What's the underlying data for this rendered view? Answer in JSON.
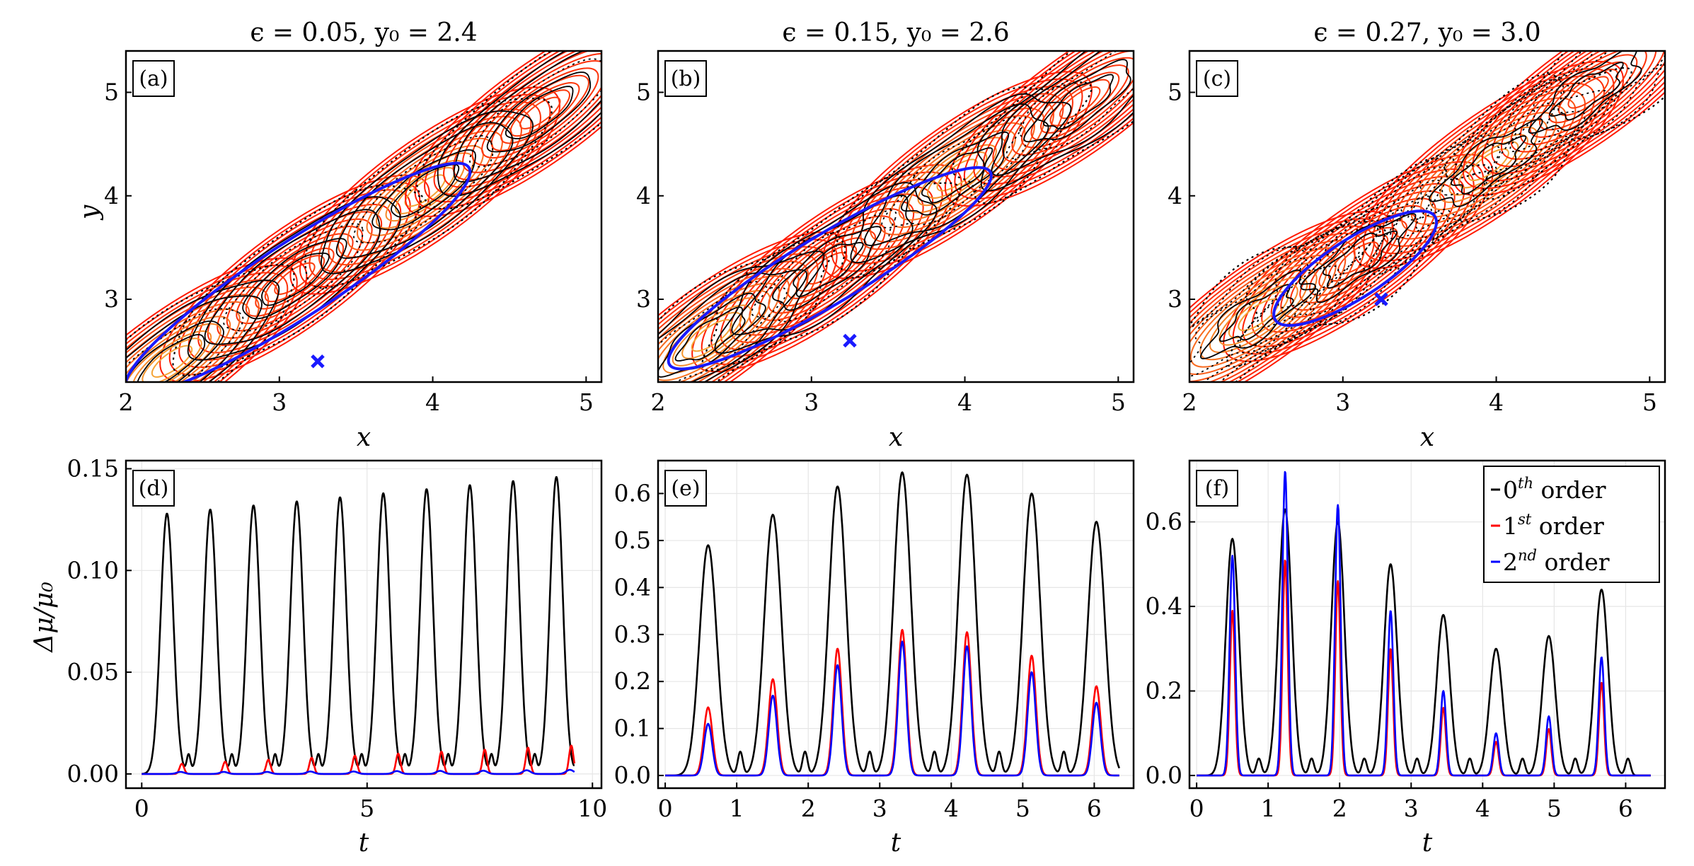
{
  "chart_data": [
    {
      "type": "contour",
      "panel": "(a)",
      "title": "ϵ = 0.05, y₀ = 2.4",
      "xlabel": "x",
      "ylabel": "y",
      "xlim": [
        2,
        5.1
      ],
      "ylim": [
        2.2,
        5.4
      ],
      "xticks": [
        "2",
        "3",
        "4",
        "5"
      ],
      "yticks": [
        "3",
        "4",
        "5"
      ],
      "epsilon": 0.05,
      "start": {
        "x": 3.25,
        "y": 2.4
      },
      "orbit": {
        "cx": 3.12,
        "cy": 3.2,
        "a": 1.33,
        "b": 0.36,
        "angle_deg": -33
      },
      "islands": [
        {
          "cx": 3.1,
          "cy": 3.2,
          "sign": 1
        },
        {
          "cx": 3.95,
          "cy": 4.05,
          "sign": -1
        },
        {
          "cx": 4.7,
          "cy": 4.8,
          "sign": 1
        },
        {
          "cx": 2.3,
          "cy": 2.4,
          "sign": -1
        }
      ]
    },
    {
      "type": "contour",
      "panel": "(b)",
      "title": "ϵ = 0.15, y₀ = 2.6",
      "xlabel": "x",
      "ylabel": "",
      "xlim": [
        2,
        5.1
      ],
      "ylim": [
        2.2,
        5.4
      ],
      "xticks": [
        "2",
        "3",
        "4",
        "5"
      ],
      "yticks": [
        "3",
        "4",
        "5"
      ],
      "epsilon": 0.15,
      "start": {
        "x": 3.25,
        "y": 2.6
      },
      "orbit": {
        "cx": 3.12,
        "cy": 3.3,
        "a": 1.22,
        "b": 0.33,
        "angle_deg": -31
      },
      "islands": [
        {
          "cx": 3.1,
          "cy": 3.3,
          "sign": 1
        },
        {
          "cx": 3.95,
          "cy": 4.2,
          "sign": -1
        },
        {
          "cx": 4.75,
          "cy": 4.9,
          "sign": 1
        },
        {
          "cx": 2.35,
          "cy": 2.65,
          "sign": -1
        }
      ]
    },
    {
      "type": "contour",
      "panel": "(c)",
      "title": "ϵ = 0.27, y₀ = 3.0",
      "xlabel": "x",
      "ylabel": "",
      "xlim": [
        2,
        5.1
      ],
      "ylim": [
        2.2,
        5.4
      ],
      "xticks": [
        "2",
        "3",
        "4",
        "5"
      ],
      "yticks": [
        "3",
        "4",
        "5"
      ],
      "epsilon": 0.27,
      "start": {
        "x": 3.25,
        "y": 3.0
      },
      "orbit": {
        "cx": 3.08,
        "cy": 3.3,
        "a": 0.62,
        "b": 0.28,
        "angle_deg": -33
      },
      "islands": [
        {
          "cx": 3.1,
          "cy": 3.4,
          "sign": 1
        },
        {
          "cx": 3.95,
          "cy": 4.3,
          "sign": -1
        },
        {
          "cx": 4.6,
          "cy": 5.0,
          "sign": 1
        },
        {
          "cx": 2.45,
          "cy": 2.85,
          "sign": -1
        }
      ]
    },
    {
      "type": "line",
      "panel": "(d)",
      "xlabel": "t",
      "ylabel": "Δμ/μ₀",
      "xlim": [
        -0.35,
        10.2
      ],
      "ylim": [
        -0.007,
        0.154
      ],
      "xticks": [
        0,
        5,
        10
      ],
      "xtick_labels": [
        "0",
        "5",
        "10"
      ],
      "yticks": [
        0,
        0.05,
        0.1,
        0.15
      ],
      "ytick_labels": [
        "0.00",
        "0.05",
        "0.10",
        "0.15"
      ],
      "t_end": 9.6,
      "period": 0.96,
      "phase": 0.56,
      "series": [
        {
          "name": "0th order",
          "color": "#000000",
          "peaks": [
            0.128,
            0.13,
            0.132,
            0.134,
            0.136,
            0.138,
            0.14,
            0.142,
            0.144,
            0.146
          ],
          "width": 0.2,
          "base": 0.009,
          "base_width": 0.06,
          "base_offset": 0.48
        },
        {
          "name": "1st order",
          "color": "#ff0000",
          "peaks": [
            0.005,
            0.006,
            0.007,
            0.008,
            0.009,
            0.01,
            0.011,
            0.012,
            0.013,
            0.014
          ],
          "width": 0.07,
          "offset": 0.33
        },
        {
          "name": "2nd order",
          "color": "#0000ff",
          "peaks": [
            0.001,
            0.001,
            0.001,
            0.0012,
            0.0012,
            0.0014,
            0.0015,
            0.0016,
            0.0018,
            0.002
          ],
          "width": 0.12,
          "offset": 0.3
        }
      ]
    },
    {
      "type": "line",
      "panel": "(e)",
      "xlabel": "t",
      "ylabel": "",
      "xlim": [
        -0.1,
        6.55
      ],
      "ylim": [
        -0.027,
        0.67
      ],
      "xticks": [
        0,
        1,
        2,
        3,
        4,
        5,
        6
      ],
      "xtick_labels": [
        "0",
        "1",
        "2",
        "3",
        "4",
        "5",
        "6"
      ],
      "yticks": [
        0,
        0.1,
        0.2,
        0.3,
        0.4,
        0.5,
        0.6
      ],
      "ytick_labels": [
        "0.0",
        "0.1",
        "0.2",
        "0.3",
        "0.4",
        "0.5",
        "0.6"
      ],
      "t_end": 6.35,
      "period": 0.905,
      "phase": 0.6,
      "series": [
        {
          "name": "0th order",
          "color": "#000000",
          "peaks": [
            0.49,
            0.555,
            0.615,
            0.645,
            0.64,
            0.6,
            0.54
          ],
          "width": 0.17,
          "base": 0.05,
          "base_width": 0.05,
          "base_offset": 0.45
        },
        {
          "name": "1st order",
          "color": "#ff0000",
          "peaks": [
            0.145,
            0.205,
            0.27,
            0.31,
            0.305,
            0.255,
            0.19
          ],
          "width": 0.085,
          "offset": 0
        },
        {
          "name": "2nd order",
          "color": "#0000ff",
          "peaks": [
            0.11,
            0.17,
            0.235,
            0.285,
            0.275,
            0.22,
            0.155
          ],
          "width": 0.08,
          "offset": 0
        }
      ]
    },
    {
      "type": "line",
      "panel": "(f)",
      "xlabel": "t",
      "ylabel": "",
      "xlim": [
        -0.1,
        6.55
      ],
      "ylim": [
        -0.03,
        0.745
      ],
      "xticks": [
        0,
        1,
        2,
        3,
        4,
        5,
        6
      ],
      "xtick_labels": [
        "0",
        "1",
        "2",
        "3",
        "4",
        "5",
        "6"
      ],
      "yticks": [
        0,
        0.2,
        0.4,
        0.6
      ],
      "ytick_labels": [
        "0.0",
        "0.2",
        "0.4",
        "0.6"
      ],
      "t_end": 6.35,
      "period": 0.7375,
      "phase": 0.5,
      "legend": {
        "position": "top-right",
        "entries": [
          "0th order",
          "1st order",
          "2nd order"
        ]
      },
      "series": [
        {
          "name": "0th order",
          "color": "#000000",
          "peaks": [
            0.56,
            0.63,
            0.6,
            0.5,
            0.38,
            0.3,
            0.33,
            0.44
          ],
          "width": 0.13,
          "base": 0.04,
          "base_width": 0.05,
          "base_offset": 0.37
        },
        {
          "name": "1st order",
          "color": "#ff0000",
          "peaks": [
            0.39,
            0.51,
            0.46,
            0.3,
            0.16,
            0.08,
            0.11,
            0.22
          ],
          "width": 0.05,
          "offset": 0
        },
        {
          "name": "2nd order",
          "color": "#0000ff",
          "peaks": [
            0.52,
            0.72,
            0.64,
            0.39,
            0.2,
            0.1,
            0.14,
            0.28
          ],
          "width": 0.055,
          "offset": 0
        }
      ]
    }
  ],
  "legend_labels": {
    "zero": {
      "num": "0",
      "sup": "th",
      "text": " order"
    },
    "first": {
      "num": "1",
      "sup": "st",
      "text": " order"
    },
    "second": {
      "num": "2",
      "sup": "nd",
      "text": " order"
    }
  },
  "colors": {
    "contour_low": "#ff1a00",
    "contour_high": "#f2b63c",
    "orbit": "#1a1aff",
    "islands": "#000000",
    "grid": "#e6e6e6"
  }
}
